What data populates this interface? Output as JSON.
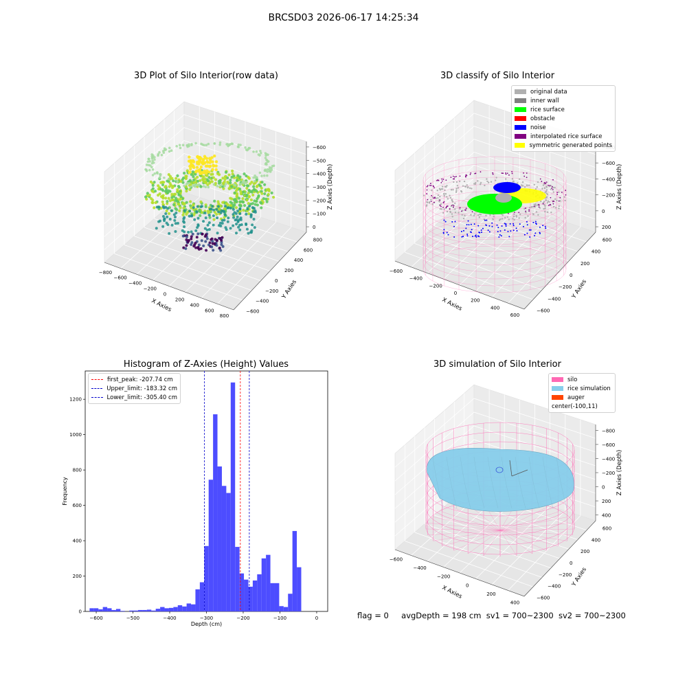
{
  "suptitle": "BRCSD03 2026-06-17 14:25:34",
  "colors": {
    "hist_bar": "#4d4dff",
    "first_peak_line": "#ff0000",
    "limit_lines": "#0000cc",
    "silo": "#ff69b4",
    "rice_simulation": "#87ceeb",
    "auger": "#ff4500",
    "noise": "#0000ff",
    "rice_surface": "#00ff00",
    "original_data": "#b0b0b0",
    "inner_wall": "#808080",
    "obstacle": "#ff0000",
    "interpolated_rice_surface": "#800080",
    "symmetric_generated_points": "#ffff00"
  },
  "panel_raw": {
    "title": "3D Plot of Silo Interior(row data)",
    "xlabel": "X Axies",
    "ylabel": "Y Axies",
    "zlabel": "Z Axies (Depth)",
    "xticks": [
      "−800",
      "−600",
      "−400",
      "−200",
      "0",
      "200",
      "400",
      "600",
      "800"
    ],
    "yticks": [
      "−600",
      "−400",
      "−200",
      "0",
      "200",
      "400",
      "600",
      "800"
    ],
    "zticks": [
      "0",
      "−100",
      "−200",
      "−300",
      "−400",
      "−500",
      "−600"
    ]
  },
  "panel_classify": {
    "title": "3D classify of Silo Interior",
    "xlabel": "X Axies",
    "ylabel": "Y Axies",
    "zlabel": "Z Axies (Depth)",
    "xticks": [
      "−600",
      "−400",
      "−200",
      "0",
      "200",
      "400",
      "600"
    ],
    "yticks": [
      "−600",
      "−400",
      "−200",
      "0",
      "200",
      "400",
      "600"
    ],
    "zticks": [
      "200",
      "0",
      "−200",
      "−400",
      "−600",
      "−800"
    ],
    "legend": [
      {
        "label": "original data",
        "color": "#b0b0b0"
      },
      {
        "label": "inner wall",
        "color": "#808080"
      },
      {
        "label": "rice surface",
        "color": "#00ff00"
      },
      {
        "label": "obstacle",
        "color": "#ff0000"
      },
      {
        "label": "noise",
        "color": "#0000ff"
      },
      {
        "label": "interpolated rice surface",
        "color": "#800080"
      },
      {
        "label": "symmetric generated points",
        "color": "#ffff00"
      }
    ]
  },
  "panel_sim": {
    "title": "3D simulation of Silo Interior",
    "xlabel": "X Axies",
    "ylabel": "Y Axies",
    "zlabel": "Z Axies (Depth)",
    "xticks": [
      "−600",
      "−400",
      "−200",
      "0",
      "200",
      "400"
    ],
    "yticks": [
      "−600",
      "−400",
      "−200",
      "0",
      "200",
      "400",
      "600"
    ],
    "zticks": [
      "400",
      "200",
      "0",
      "−200",
      "−400",
      "−600",
      "−800"
    ],
    "legend": [
      {
        "label": "silo",
        "color": "#ff69b4"
      },
      {
        "label": "rice simulation",
        "color": "#87ceeb"
      },
      {
        "label": "auger",
        "color": "#ff4500"
      },
      {
        "label": "center(-100,11)",
        "color": ""
      }
    ]
  },
  "footer": {
    "flag": "flag = 0",
    "avg": "avgDepth = 198 cm",
    "sv1": "sv1 = 700~2300",
    "sv2": "sv2 = 700~2300"
  },
  "chart_data": {
    "type": "bar",
    "title": "Histogram of Z-Axies (Height) Values",
    "xlabel": "Depth (cm)",
    "ylabel": "Frequency",
    "xlim": [
      -630,
      30
    ],
    "ylim": [
      0,
      1360
    ],
    "xticks": [
      -600,
      -500,
      -400,
      -300,
      -200,
      -100,
      0
    ],
    "yticks": [
      0,
      200,
      400,
      600,
      800,
      1000,
      1200
    ],
    "bin_width": 12,
    "bin_start": -618,
    "values": [
      18,
      18,
      12,
      25,
      18,
      8,
      14,
      3,
      0,
      5,
      5,
      8,
      8,
      10,
      5,
      15,
      25,
      18,
      20,
      25,
      35,
      28,
      45,
      40,
      125,
      165,
      370,
      745,
      1115,
      820,
      710,
      670,
      1295,
      365,
      215,
      180,
      140,
      175,
      210,
      300,
      320,
      160,
      160,
      30,
      25,
      100,
      455,
      250
    ],
    "lines": [
      {
        "label": "first_peak: -207.74 cm",
        "value": -207.74,
        "color": "#ff0000"
      },
      {
        "label": "Upper_limit: -183.32 cm",
        "value": -183.32,
        "color": "#0000cc"
      },
      {
        "label": "Lower_limit: -305.40 cm",
        "value": -305.4,
        "color": "#0000cc"
      }
    ]
  }
}
